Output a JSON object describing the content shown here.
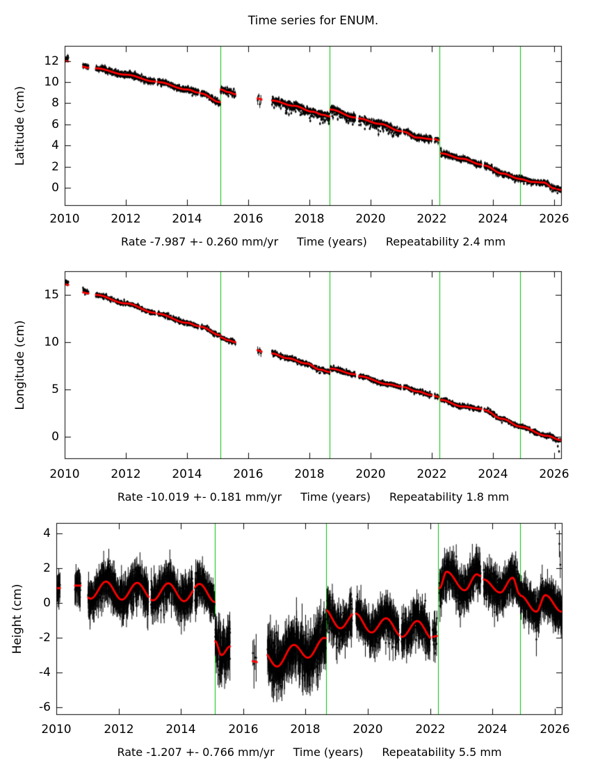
{
  "title": "Time series for ENUM.",
  "colors": {
    "background": "#ffffff",
    "data_points": "#000000",
    "model_line": "#ff0000",
    "event_line": "#00c000",
    "text": "#000000"
  },
  "chart_data": {
    "type": "scatter",
    "title": "Time series for ENUM.",
    "legend": "none",
    "grid": false,
    "event_lines_years": [
      2015.08,
      2018.67,
      2022.25,
      2024.88
    ],
    "x_tick_labels": [
      "2010",
      "2012",
      "2014",
      "2016",
      "2018",
      "2020",
      "2022",
      "2024",
      "2026"
    ],
    "panels": [
      {
        "name": "latitude",
        "ylabel": "Latitude (cm)",
        "caption": {
          "rate": "Rate -7.987 +- 0.260 mm/yr",
          "xlabel": "Time (years)",
          "repeatability": "Repeatability 2.4 mm"
        },
        "xlim": [
          2010,
          2026.25
        ],
        "ylim": [
          -1.71,
          13.42
        ],
        "xticks": [
          2010,
          2012,
          2014,
          2016,
          2018,
          2020,
          2022,
          2024,
          2026
        ],
        "yticks": [
          0,
          2,
          4,
          6,
          8,
          10,
          12
        ],
        "noise_sd": 0.13,
        "error_bar": 0.16,
        "segments": [
          {
            "points": [
              [
                2010.03,
                12.0
              ],
              [
                2010.12,
                11.95
              ]
            ],
            "dt": 0.008,
            "sd": 0.15,
            "err": 0.2,
            "black_offset": 0.25
          },
          {
            "points": [
              [
                2010.6,
                11.45
              ],
              [
                2010.78,
                11.35
              ]
            ],
            "dt": 0.008,
            "black_offset": 0.1
          },
          {
            "points": [
              [
                2011.02,
                11.3
              ],
              [
                2012.0,
                10.7
              ],
              [
                2012.96,
                10.05
              ]
            ]
          },
          {
            "points": [
              [
                2013.04,
                10.0
              ],
              [
                2014.0,
                9.3
              ],
              [
                2014.38,
                9.0
              ]
            ]
          },
          {
            "points": [
              [
                2014.45,
                8.92
              ],
              [
                2015.08,
                8.1
              ]
            ]
          },
          {
            "points": [
              [
                2015.1,
                9.3
              ],
              [
                2015.35,
                9.05
              ],
              [
                2015.58,
                8.85
              ]
            ],
            "sd": 0.16
          },
          {
            "points": [
              [
                2016.31,
                8.45
              ],
              [
                2016.44,
                8.35
              ]
            ],
            "dt": 0.035,
            "sd": 0.33,
            "err": 0.35,
            "sparse": true
          },
          {
            "points": [
              [
                2016.78,
                8.25
              ],
              [
                2017.5,
                7.75
              ],
              [
                2018.1,
                7.2
              ],
              [
                2018.45,
                6.9
              ],
              [
                2018.66,
                6.75
              ]
            ],
            "sd": 0.17,
            "neg_tail": true
          },
          {
            "points": [
              [
                2018.69,
                7.4
              ],
              [
                2019.5,
                6.65
              ]
            ],
            "sd": 0.15,
            "neg_tail": true
          },
          {
            "points": [
              [
                2019.62,
                6.55
              ],
              [
                2020.3,
                6.05
              ],
              [
                2021.0,
                5.35
              ]
            ],
            "sd": 0.15,
            "neg_tail": true
          },
          {
            "points": [
              [
                2021.08,
                5.3
              ],
              [
                2021.52,
                4.75
              ],
              [
                2022.0,
                4.6
              ]
            ]
          },
          {
            "points": [
              [
                2022.1,
                4.6
              ],
              [
                2022.22,
                4.5
              ]
            ],
            "dt": 0.009
          },
          {
            "points": [
              [
                2022.3,
                3.25
              ],
              [
                2023.0,
                2.75
              ],
              [
                2023.62,
                2.2
              ]
            ]
          },
          {
            "points": [
              [
                2023.72,
                2.1
              ],
              [
                2024.3,
                1.35
              ],
              [
                2024.88,
                0.85
              ]
            ]
          },
          {
            "points": [
              [
                2024.9,
                0.82
              ],
              [
                2025.3,
                0.55
              ],
              [
                2025.65,
                0.5
              ],
              [
                2026.0,
                -0.05
              ],
              [
                2026.22,
                -0.2
              ]
            ]
          }
        ],
        "extra_points": []
      },
      {
        "name": "longitude",
        "ylabel": "Longitude (cm)",
        "caption": {
          "rate": "Rate -10.019 +- 0.181 mm/yr",
          "xlabel": "Time (years)",
          "repeatability": "Repeatability 1.8 mm"
        },
        "xlim": [
          2010,
          2026.25
        ],
        "ylim": [
          -2.35,
          17.5
        ],
        "xticks": [
          2010,
          2012,
          2014,
          2016,
          2018,
          2020,
          2022,
          2024,
          2026
        ],
        "yticks": [
          0,
          5,
          10,
          15
        ],
        "noise_sd": 0.11,
        "error_bar": 0.14,
        "segments": [
          {
            "points": [
              [
                2010.03,
                16.1
              ],
              [
                2010.12,
                16.05
              ]
            ],
            "dt": 0.008,
            "sd": 0.15,
            "black_offset": 0.25
          },
          {
            "points": [
              [
                2010.6,
                15.25
              ],
              [
                2010.78,
                15.15
              ]
            ],
            "dt": 0.008,
            "black_offset": 0.15
          },
          {
            "points": [
              [
                2011.02,
                15.0
              ],
              [
                2012.0,
                14.1
              ],
              [
                2012.96,
                13.1
              ]
            ]
          },
          {
            "points": [
              [
                2013.04,
                13.0
              ],
              [
                2014.0,
                12.05
              ],
              [
                2014.38,
                11.7
              ]
            ]
          },
          {
            "points": [
              [
                2014.45,
                11.62
              ],
              [
                2015.08,
                10.75
              ]
            ]
          },
          {
            "points": [
              [
                2015.1,
                10.5
              ],
              [
                2015.35,
                10.2
              ],
              [
                2015.58,
                10.0
              ]
            ]
          },
          {
            "points": [
              [
                2016.31,
                9.15
              ],
              [
                2016.44,
                9.0
              ]
            ],
            "dt": 0.035,
            "sd": 0.15,
            "err": 0.3,
            "sparse": true
          },
          {
            "points": [
              [
                2016.78,
                8.8
              ],
              [
                2017.3,
                8.3
              ],
              [
                2017.9,
                7.75
              ],
              [
                2018.35,
                7.1
              ],
              [
                2018.66,
                6.85
              ]
            ],
            "sd": 0.13
          },
          {
            "points": [
              [
                2018.69,
                7.2
              ],
              [
                2019.5,
                6.6
              ]
            ]
          },
          {
            "points": [
              [
                2019.62,
                6.4
              ],
              [
                2020.6,
                5.55
              ],
              [
                2021.0,
                5.3
              ]
            ]
          },
          {
            "points": [
              [
                2021.08,
                5.25
              ],
              [
                2021.52,
                4.8
              ],
              [
                2022.0,
                4.4
              ]
            ]
          },
          {
            "points": [
              [
                2022.1,
                4.3
              ],
              [
                2022.22,
                4.2
              ]
            ],
            "dt": 0.009
          },
          {
            "points": [
              [
                2022.3,
                3.9
              ],
              [
                2023.0,
                3.2
              ],
              [
                2023.62,
                2.95
              ]
            ]
          },
          {
            "points": [
              [
                2023.72,
                2.8
              ],
              [
                2024.3,
                1.9
              ],
              [
                2024.88,
                1.1
              ]
            ]
          },
          {
            "points": [
              [
                2024.9,
                1.05
              ],
              [
                2025.77,
                0.1
              ],
              [
                2026.22,
                -0.35
              ]
            ]
          }
        ],
        "extra_points": [
          [
            2026.12,
            -1.0
          ],
          [
            2026.16,
            -1.55
          ]
        ]
      },
      {
        "name": "height",
        "ylabel": "Height (cm)",
        "caption": {
          "rate": "Rate -1.207 +- 0.766 mm/yr",
          "xlabel": "Time (years)",
          "repeatability": "Repeatability 5.5 mm"
        },
        "xlim": [
          2010,
          2026.25
        ],
        "ylim": [
          -6.44,
          4.6
        ],
        "xticks": [
          2010,
          2012,
          2014,
          2016,
          2018,
          2020,
          2022,
          2024,
          2026
        ],
        "yticks": [
          -6,
          -4,
          -2,
          0,
          2,
          4
        ],
        "noise_sd": 0.45,
        "error_bar": 0.7,
        "segments": [
          {
            "points": [
              [
                2010.03,
                0.85
              ],
              [
                2010.12,
                0.85
              ]
            ],
            "dt": 0.008,
            "sd": 0.3
          },
          {
            "points": [
              [
                2010.6,
                1.0
              ],
              [
                2010.78,
                1.0
              ]
            ],
            "dt": 0.008,
            "sd": 0.3
          },
          {
            "points": [
              [
                2011.02,
                0.75
              ],
              [
                2012.96,
                0.65
              ]
            ],
            "amp": 0.5,
            "phase": 0.35
          },
          {
            "points": [
              [
                2013.04,
                0.65
              ],
              [
                2014.38,
                0.6
              ]
            ],
            "amp": 0.5,
            "phase": 0.35
          },
          {
            "points": [
              [
                2014.45,
                0.6
              ],
              [
                2015.08,
                0.55
              ]
            ],
            "amp": 0.5,
            "phase": 0.35
          },
          {
            "points": [
              [
                2015.1,
                -2.2
              ],
              [
                2015.3,
                -3.0
              ],
              [
                2015.58,
                -2.5
              ]
            ],
            "sd": 0.6,
            "err": 0.9
          },
          {
            "points": [
              [
                2016.31,
                -3.35
              ],
              [
                2016.44,
                -3.4
              ]
            ],
            "dt": 0.035,
            "sd": 0.6,
            "err": 1.1,
            "sparse": true
          },
          {
            "points": [
              [
                2016.78,
                -3.2
              ],
              [
                2018.66,
                -2.5
              ]
            ],
            "amp": 0.5,
            "phase": 0.35,
            "sd": 0.6,
            "err": 0.95
          },
          {
            "points": [
              [
                2018.69,
                -0.85
              ],
              [
                2019.5,
                -1.05
              ]
            ],
            "amp": 0.5,
            "phase": 0.35
          },
          {
            "points": [
              [
                2019.62,
                -1.1
              ],
              [
                2021.0,
                -1.45
              ]
            ],
            "amp": 0.5,
            "phase": 0.35
          },
          {
            "points": [
              [
                2021.08,
                -1.45
              ],
              [
                2022.0,
                -1.6
              ]
            ],
            "amp": 0.5,
            "phase": 0.35
          },
          {
            "points": [
              [
                2022.08,
                -1.95
              ],
              [
                2022.22,
                -1.9
              ]
            ],
            "dt": 0.009
          },
          {
            "points": [
              [
                2022.3,
                0.85
              ],
              [
                2022.53,
                1.8
              ],
              [
                2023.11,
                0.73
              ],
              [
                2023.5,
                1.65
              ],
              [
                2023.62,
                1.55
              ]
            ]
          },
          {
            "points": [
              [
                2023.72,
                1.35
              ],
              [
                2024.25,
                0.6
              ],
              [
                2024.65,
                1.45
              ],
              [
                2024.88,
                0.5
              ]
            ]
          },
          {
            "points": [
              [
                2024.9,
                0.42
              ],
              [
                2025.41,
                -0.5
              ],
              [
                2025.7,
                0.45
              ],
              [
                2026.22,
                -0.5
              ]
            ]
          }
        ],
        "extra_points": [
          [
            2026.15,
            3.4
          ],
          [
            2026.18,
            2.2
          ]
        ]
      }
    ]
  }
}
